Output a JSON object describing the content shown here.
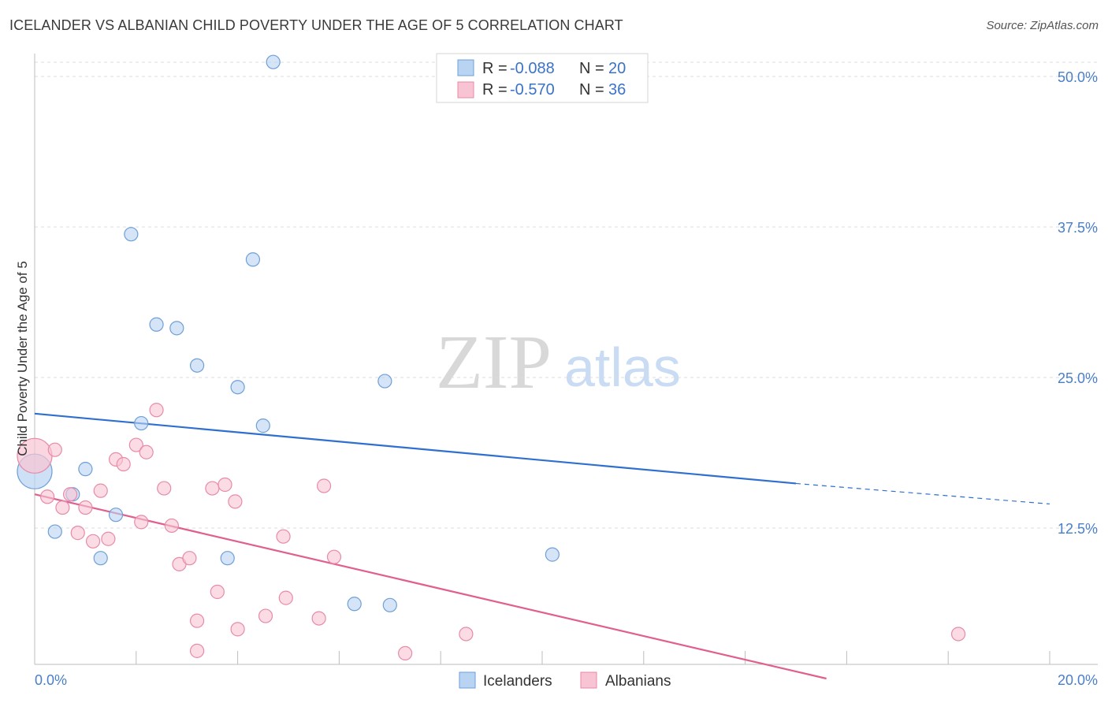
{
  "title": "ICELANDER VS ALBANIAN CHILD POVERTY UNDER THE AGE OF 5 CORRELATION CHART",
  "source": "Source: ZipAtlas.com",
  "watermark": {
    "zip": "ZIP",
    "atlas": "atlas"
  },
  "legend": {
    "rows": [
      {
        "r_label": "R =",
        "r_value": "-0.088",
        "n_label": "N =",
        "n_value": "20"
      },
      {
        "r_label": "R =",
        "r_value": "-0.570",
        "n_label": "N =",
        "n_value": "36"
      }
    ]
  },
  "colors": {
    "blue_fill": "#b9d3f2",
    "blue_stroke": "#6e9fd8",
    "blue_line": "#2f6fcf",
    "pink_fill": "#f8c4d3",
    "pink_stroke": "#e88aa8",
    "pink_line": "#e05f8e",
    "grid": "#dcdcdc"
  },
  "chart_data": {
    "type": "scatter",
    "title": "ICELANDER VS ALBANIAN CHILD POVERTY UNDER THE AGE OF 5 CORRELATION CHART",
    "xlabel": "",
    "ylabel": "Child Poverty Under the Age of 5",
    "xlim": [
      0,
      20
    ],
    "ylim": [
      0,
      50
    ],
    "x_tick_labels": [
      "0.0%",
      "20.0%"
    ],
    "y_ticks": [
      12.5,
      25.0,
      37.5,
      50.0
    ],
    "y_tick_labels": [
      "12.5%",
      "25.0%",
      "37.5%",
      "50.0%"
    ],
    "grid": true,
    "legend_position": "top-center",
    "series": [
      {
        "name": "Icelanders",
        "color": "blue",
        "points": [
          {
            "x": 0.0,
            "y": 17.2,
            "big": true
          },
          {
            "x": 4.7,
            "y": 51.2
          },
          {
            "x": 1.9,
            "y": 36.9
          },
          {
            "x": 4.3,
            "y": 34.8
          },
          {
            "x": 2.4,
            "y": 29.4
          },
          {
            "x": 2.8,
            "y": 29.1
          },
          {
            "x": 3.2,
            "y": 26.0
          },
          {
            "x": 4.0,
            "y": 24.2
          },
          {
            "x": 6.9,
            "y": 24.7
          },
          {
            "x": 2.1,
            "y": 21.2
          },
          {
            "x": 4.5,
            "y": 21.0
          },
          {
            "x": 1.0,
            "y": 17.4
          },
          {
            "x": 0.75,
            "y": 15.3
          },
          {
            "x": 1.6,
            "y": 13.6
          },
          {
            "x": 0.4,
            "y": 12.2
          },
          {
            "x": 1.3,
            "y": 10.0
          },
          {
            "x": 3.8,
            "y": 10.0
          },
          {
            "x": 10.2,
            "y": 10.3
          },
          {
            "x": 6.3,
            "y": 6.2
          },
          {
            "x": 7.0,
            "y": 6.1
          }
        ],
        "trend": {
          "x0": 0,
          "y0": 22.0,
          "x1": 15.0,
          "y1": 16.2,
          "dash_x1": 20.0,
          "dash_y1": 14.5
        }
      },
      {
        "name": "Albanians",
        "color": "pink",
        "points": [
          {
            "x": 0.0,
            "y": 18.5,
            "big": true
          },
          {
            "x": 0.4,
            "y": 19.0
          },
          {
            "x": 2.4,
            "y": 22.3
          },
          {
            "x": 2.0,
            "y": 19.4
          },
          {
            "x": 2.2,
            "y": 18.8
          },
          {
            "x": 1.6,
            "y": 18.2
          },
          {
            "x": 1.75,
            "y": 17.8
          },
          {
            "x": 0.25,
            "y": 15.1
          },
          {
            "x": 0.55,
            "y": 14.2
          },
          {
            "x": 0.7,
            "y": 15.3
          },
          {
            "x": 1.0,
            "y": 14.2
          },
          {
            "x": 1.3,
            "y": 15.6
          },
          {
            "x": 2.55,
            "y": 15.8
          },
          {
            "x": 3.5,
            "y": 15.8
          },
          {
            "x": 3.75,
            "y": 16.1
          },
          {
            "x": 5.7,
            "y": 16.0
          },
          {
            "x": 3.95,
            "y": 14.7
          },
          {
            "x": 2.1,
            "y": 13.0
          },
          {
            "x": 2.7,
            "y": 12.7
          },
          {
            "x": 0.85,
            "y": 12.1
          },
          {
            "x": 1.15,
            "y": 11.4
          },
          {
            "x": 1.45,
            "y": 11.6
          },
          {
            "x": 4.9,
            "y": 11.8
          },
          {
            "x": 2.85,
            "y": 9.5
          },
          {
            "x": 3.05,
            "y": 10.0
          },
          {
            "x": 5.9,
            "y": 10.1
          },
          {
            "x": 3.6,
            "y": 7.2
          },
          {
            "x": 4.95,
            "y": 6.7
          },
          {
            "x": 4.55,
            "y": 5.2
          },
          {
            "x": 3.2,
            "y": 4.8
          },
          {
            "x": 5.6,
            "y": 5.0
          },
          {
            "x": 4.0,
            "y": 4.1
          },
          {
            "x": 8.5,
            "y": 3.7
          },
          {
            "x": 18.2,
            "y": 3.7
          },
          {
            "x": 3.2,
            "y": 2.3
          },
          {
            "x": 7.3,
            "y": 2.1
          }
        ],
        "trend": {
          "x0": 0,
          "y0": 15.3,
          "x1": 15.6,
          "y1": 0.0
        }
      }
    ]
  },
  "bottom_legend": {
    "items": [
      "Icelanders",
      "Albanians"
    ]
  }
}
